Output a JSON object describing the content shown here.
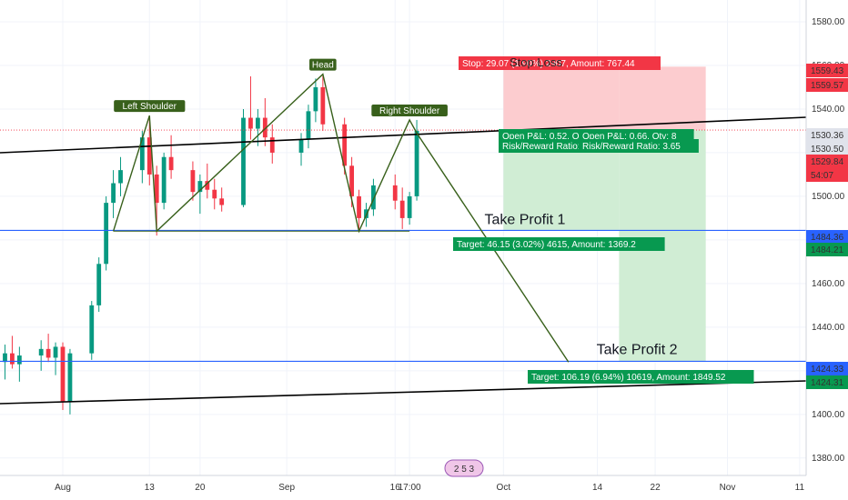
{
  "chart_data": {
    "type": "candlestick",
    "title": "",
    "xlabel": "",
    "ylabel": "",
    "x_ticks": [
      "Aug",
      "13",
      "20",
      "Sep",
      "16",
      "17:00",
      "Oct",
      "14",
      "22",
      "Nov",
      "11"
    ],
    "y_ticks": [
      1380,
      1400,
      1420,
      1440,
      1460,
      1480,
      1500,
      1520,
      1540,
      1560,
      1580
    ],
    "ylim": [
      1372,
      1590
    ],
    "grid": true,
    "price_labels": [
      {
        "value": "1559.43",
        "color": "#f23645"
      },
      {
        "value": "1559.57",
        "color": "#f23645"
      },
      {
        "value": "1530.36",
        "color": "#e0e3eb",
        "text_color": "#131722"
      },
      {
        "value": "1530.50",
        "color": "#e0e3eb",
        "text_color": "#131722"
      },
      {
        "value": "1529.84",
        "color": "#f23645"
      },
      {
        "value": "54:07",
        "color": "#f23645"
      },
      {
        "value": "1484.36",
        "color": "#2962ff"
      },
      {
        "value": "1484.21",
        "color": "#089950"
      },
      {
        "value": "1424.33",
        "color": "#2962ff"
      },
      {
        "value": "1424.31",
        "color": "#089950"
      }
    ],
    "patterns": [
      "Left Shoulder",
      "Head",
      "Right Shoulder"
    ],
    "annotations": [
      "Take Profit 1",
      "Take Profit 2",
      "Stop Loss"
    ],
    "order_boxes": [
      {
        "text": "Stop: 29.07 (1.90%) 2907, Amount: 767.44",
        "overlap": "Stop: 29.07",
        "color": "#f23645"
      },
      {
        "text": "Open P&L: 0.52, Qty:",
        "color": "#089950"
      },
      {
        "text": "Risk/Reward Ratio: 1.",
        "color": "#089950"
      },
      {
        "text": "Open P&L: 0.66, Qty: 8",
        "color": "#089950"
      },
      {
        "text": "Risk/Reward Ratio: 3.65",
        "color": "#089950"
      },
      {
        "text": "Target: 46.15 (3.02%) 4615, Amount: 1369.2",
        "color": "#089950"
      },
      {
        "text": "Target: 106.19 (6.94%) 10619, Amount: 1849.52",
        "color": "#089950"
      }
    ],
    "levels": [
      {
        "name": "take-profit-1",
        "value": 1484.36
      },
      {
        "name": "take-profit-2",
        "value": 1424.33
      },
      {
        "name": "entry",
        "value": 1530.36
      },
      {
        "name": "stop",
        "value": 1559.43
      }
    ],
    "neckline": {
      "value": 1484
    },
    "head_shoulders_path": [
      {
        "date": "Aug 8",
        "value": 1484
      },
      {
        "date": "Aug 13",
        "value": 1537
      },
      {
        "date": "Aug 14",
        "value": 1484
      },
      {
        "date": "Sep 6",
        "value": 1556
      },
      {
        "date": "Sep 11",
        "value": 1484
      },
      {
        "date": "Sep 18",
        "value": 1535
      },
      {
        "date": "Sep 19",
        "value": 1529
      },
      {
        "date": "Oct 10",
        "value": 1424
      }
    ],
    "candles": [
      {
        "d": "Jul 24",
        "o": 1424,
        "h": 1432,
        "l": 1416,
        "c": 1428
      },
      {
        "d": "Jul 25",
        "o": 1428,
        "h": 1436,
        "l": 1421,
        "c": 1423
      },
      {
        "d": "Jul 26",
        "o": 1423,
        "h": 1431,
        "l": 1415,
        "c": 1427
      },
      {
        "d": "Jul 29",
        "o": 1427,
        "h": 1434,
        "l": 1420,
        "c": 1430
      },
      {
        "d": "Jul 30",
        "o": 1430,
        "h": 1437,
        "l": 1424,
        "c": 1426
      },
      {
        "d": "Jul 31",
        "o": 1426,
        "h": 1433,
        "l": 1418,
        "c": 1431
      },
      {
        "d": "Aug 1",
        "o": 1431,
        "h": 1433,
        "l": 1402,
        "c": 1406
      },
      {
        "d": "Aug 2",
        "o": 1406,
        "h": 1430,
        "l": 1400,
        "c": 1428
      },
      {
        "d": "Aug 5",
        "o": 1428,
        "h": 1452,
        "l": 1425,
        "c": 1450
      },
      {
        "d": "Aug 6",
        "o": 1450,
        "h": 1472,
        "l": 1447,
        "c": 1469
      },
      {
        "d": "Aug 7",
        "o": 1469,
        "h": 1500,
        "l": 1466,
        "c": 1497
      },
      {
        "d": "Aug 8",
        "o": 1497,
        "h": 1512,
        "l": 1490,
        "c": 1506
      },
      {
        "d": "Aug 9",
        "o": 1506,
        "h": 1518,
        "l": 1500,
        "c": 1512
      },
      {
        "d": "Aug 12",
        "o": 1512,
        "h": 1530,
        "l": 1506,
        "c": 1527
      },
      {
        "d": "Aug 13",
        "o": 1527,
        "h": 1537,
        "l": 1505,
        "c": 1510
      },
      {
        "d": "Aug 14",
        "o": 1510,
        "h": 1514,
        "l": 1482,
        "c": 1497
      },
      {
        "d": "Aug 15",
        "o": 1497,
        "h": 1520,
        "l": 1494,
        "c": 1518
      },
      {
        "d": "Aug 16",
        "o": 1518,
        "h": 1528,
        "l": 1508,
        "c": 1512
      },
      {
        "d": "Aug 19",
        "o": 1512,
        "h": 1516,
        "l": 1498,
        "c": 1502
      },
      {
        "d": "Aug 20",
        "o": 1502,
        "h": 1510,
        "l": 1492,
        "c": 1507
      },
      {
        "d": "Aug 21",
        "o": 1507,
        "h": 1515,
        "l": 1499,
        "c": 1503
      },
      {
        "d": "Aug 22",
        "o": 1503,
        "h": 1508,
        "l": 1494,
        "c": 1499
      },
      {
        "d": "Aug 23",
        "o": 1499,
        "h": 1504,
        "l": 1493,
        "c": 1496
      },
      {
        "d": "Aug 26",
        "o": 1496,
        "h": 1540,
        "l": 1495,
        "c": 1536
      },
      {
        "d": "Aug 27",
        "o": 1536,
        "h": 1555,
        "l": 1526,
        "c": 1531
      },
      {
        "d": "Aug 28",
        "o": 1531,
        "h": 1540,
        "l": 1523,
        "c": 1536
      },
      {
        "d": "Aug 29",
        "o": 1536,
        "h": 1545,
        "l": 1523,
        "c": 1527
      },
      {
        "d": "Aug 30",
        "o": 1527,
        "h": 1533,
        "l": 1515,
        "c": 1520
      },
      {
        "d": "Sep 3",
        "o": 1520,
        "h": 1529,
        "l": 1514,
        "c": 1526
      },
      {
        "d": "Sep 4",
        "o": 1526,
        "h": 1542,
        "l": 1522,
        "c": 1539
      },
      {
        "d": "Sep 5",
        "o": 1539,
        "h": 1554,
        "l": 1534,
        "c": 1550
      },
      {
        "d": "Sep 6",
        "o": 1550,
        "h": 1556,
        "l": 1530,
        "c": 1533
      },
      {
        "d": "Sep 9",
        "o": 1533,
        "h": 1536,
        "l": 1510,
        "c": 1514
      },
      {
        "d": "Sep 10",
        "o": 1514,
        "h": 1518,
        "l": 1495,
        "c": 1500
      },
      {
        "d": "Sep 11",
        "o": 1500,
        "h": 1503,
        "l": 1484,
        "c": 1490
      },
      {
        "d": "Sep 12",
        "o": 1490,
        "h": 1497,
        "l": 1486,
        "c": 1494
      },
      {
        "d": "Sep 13",
        "o": 1494,
        "h": 1508,
        "l": 1491,
        "c": 1505
      },
      {
        "d": "Sep 16",
        "o": 1505,
        "h": 1510,
        "l": 1494,
        "c": 1498
      },
      {
        "d": "Sep 17",
        "o": 1498,
        "h": 1504,
        "l": 1485,
        "c": 1490
      },
      {
        "d": "Sep 18",
        "o": 1490,
        "h": 1502,
        "l": 1487,
        "c": 1500
      },
      {
        "d": "Sep 19",
        "o": 1500,
        "h": 1535,
        "l": 1498,
        "c": 1530
      }
    ],
    "positions": [
      {
        "entry": 1530.36,
        "stop": 1559.43,
        "target": 1484.21,
        "start": "Oct 1",
        "end": "Oct 17"
      },
      {
        "entry": 1530.36,
        "stop": 1559.43,
        "target": 1424.31,
        "start": "Oct 17",
        "end": "Oct 29"
      }
    ],
    "colors": {
      "up": "#089981",
      "down": "#f23645",
      "level": "#2962ff",
      "trend": "#000000",
      "pattern": "#38601b",
      "profit": "#cdecd2",
      "loss": "#fcc9cc"
    }
  },
  "calendar_badge": "2 5 3"
}
